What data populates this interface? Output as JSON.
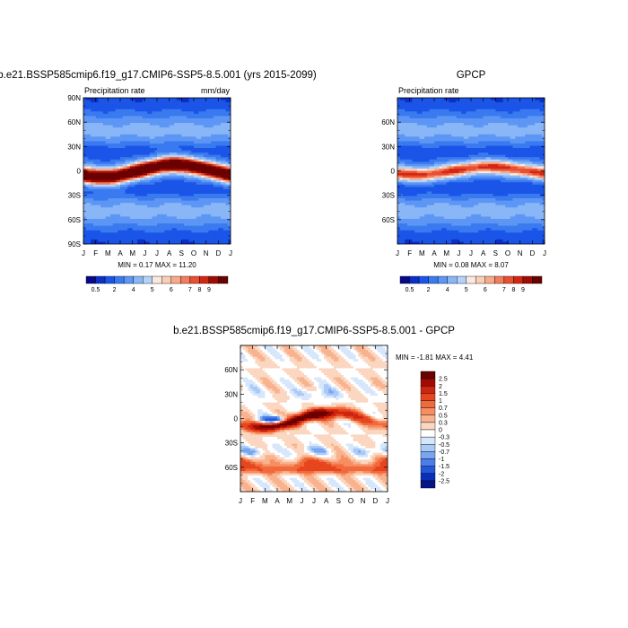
{
  "chart_data": [
    {
      "type": "heatmap",
      "title": "b.e21.BSSP585cmip6.f19_g17.CMIP6-SSP5-8.5.001 (yrs 2015-2099)",
      "left_label": "Precipitation rate",
      "right_label": "mm/day",
      "stats": "MIN =   0.17 MAX =  11.20",
      "x_ticks": [
        "J",
        "F",
        "M",
        "A",
        "M",
        "J",
        "J",
        "A",
        "S",
        "O",
        "N",
        "D",
        "J"
      ],
      "y_ticks": [
        "90N",
        "60N",
        "30N",
        "0",
        "30S",
        "60S",
        "90S"
      ],
      "y_tick_values": [
        90,
        60,
        30,
        0,
        -30,
        -60,
        -90
      ],
      "ylim": [
        -90,
        90
      ],
      "itcz": {
        "amplitude": 8,
        "peak_month": 7.5,
        "width": 8,
        "peak_value": 11.2,
        "min_value": 0.17
      },
      "colorbar_labels": [
        "0.5",
        "2",
        "4",
        "5",
        "6",
        "7",
        "8",
        "9"
      ]
    },
    {
      "type": "heatmap",
      "title": "GPCP",
      "left_label": "Precipitation rate",
      "right_label": "",
      "stats": "MIN =   0.08 MAX =   8.07",
      "x_ticks": [
        "J",
        "F",
        "M",
        "A",
        "M",
        "J",
        "J",
        "A",
        "S",
        "O",
        "N",
        "D",
        "J"
      ],
      "y_ticks": [
        "60N",
        "30N",
        "0",
        "30S",
        "60S"
      ],
      "y_tick_values": [
        60,
        30,
        0,
        -30,
        -60
      ],
      "ylim": [
        -90,
        90
      ],
      "itcz": {
        "amplitude": 5,
        "peak_month": 7.5,
        "width": 7,
        "peak_value": 8.07,
        "min_value": 0.08
      },
      "colorbar_labels": [
        "0.5",
        "2",
        "4",
        "5",
        "6",
        "7",
        "8",
        "9"
      ]
    },
    {
      "type": "heatmap",
      "title": "b.e21.BSSP585cmip6.f19_g17.CMIP6-SSP5-8.5.001 - GPCP",
      "left_label": "",
      "right_label": "",
      "stats": "MIN =  -1.81 MAX =   4.41",
      "x_ticks": [
        "J",
        "F",
        "M",
        "A",
        "M",
        "J",
        "J",
        "A",
        "S",
        "O",
        "N",
        "D",
        "J"
      ],
      "y_ticks": [
        "60N",
        "30N",
        "0",
        "30S",
        "60S"
      ],
      "y_tick_values": [
        60,
        30,
        0,
        -30,
        -60
      ],
      "ylim": [
        -90,
        90
      ],
      "colorbar_labels": [
        "2.5",
        "2",
        "1.5",
        "1",
        "0.7",
        "0.5",
        "0.3",
        "0",
        "-0.3",
        "-0.5",
        "-0.7",
        "-1",
        "-1.5",
        "-2",
        "-2.5"
      ]
    }
  ],
  "colors": {
    "seq": [
      "#08088a",
      "#0b2fc8",
      "#1a55e8",
      "#3a7af0",
      "#5d96f4",
      "#88b6f7",
      "#b4d2fa",
      "#fbe9de",
      "#fbcfb6",
      "#f8a98a",
      "#f27e5d",
      "#e84f33",
      "#d22711",
      "#a00b03",
      "#6a0000"
    ],
    "div": [
      "#6a0000",
      "#a00b03",
      "#cf2410",
      "#e6461f",
      "#f16a3c",
      "#f68e62",
      "#f9b28e",
      "#fbd6c0",
      "#ffffff",
      "#d6e6fb",
      "#a9caf7",
      "#79a6f1",
      "#4b7ee9",
      "#2257dc",
      "#0a30b8",
      "#04148a"
    ]
  }
}
